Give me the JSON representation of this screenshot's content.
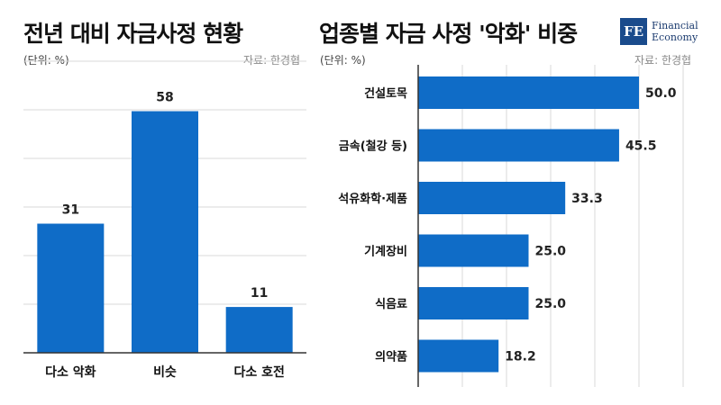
{
  "left": {
    "title": "전년 대비 자금사정 현황",
    "unit": "(단위: %)",
    "source": "자료: 한경협"
  },
  "right": {
    "title": "업종별 자금 사정 '악화' 비중",
    "unit": "(단위: %)",
    "source": "자료: 한경협"
  },
  "logo": {
    "mark": "FE",
    "line1": "Financial",
    "line2": "Economy"
  },
  "colors": {
    "bar": "#0f6cc7",
    "grid": "#d9d9d9",
    "axis": "#333333"
  },
  "chart_data": [
    {
      "type": "bar",
      "orientation": "vertical",
      "categories": [
        "다소 악화",
        "비슷",
        "다소 호전"
      ],
      "values": [
        31,
        58,
        11
      ],
      "value_labels": [
        "31",
        "58",
        "11"
      ],
      "title": "전년 대비 자금사정 현황",
      "ylim": [
        0,
        70
      ],
      "grid": true
    },
    {
      "type": "bar",
      "orientation": "horizontal",
      "categories": [
        "건설토목",
        "금속(철강 등)",
        "석유화학·제품",
        "기계장비",
        "식음료",
        "의약품"
      ],
      "values": [
        50.0,
        45.5,
        33.3,
        25.0,
        25.0,
        18.2
      ],
      "value_labels": [
        "50.0",
        "45.5",
        "33.3",
        "25.0",
        "25.0",
        "18.2"
      ],
      "title": "업종별 자금 사정 '악화' 비중",
      "xlim": [
        0,
        60
      ],
      "grid": true
    }
  ]
}
